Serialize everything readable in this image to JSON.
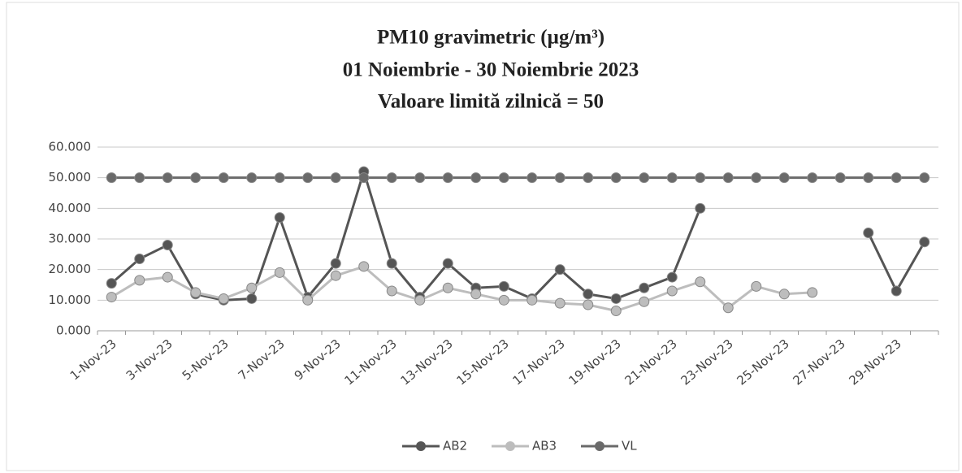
{
  "chart_data": {
    "type": "line",
    "title": "PM10 gravimetric (µg/m³)",
    "subtitle": [
      "01 Noiembrie - 30 Noiembrie 2023",
      "Valoare limită zilnică  = 50"
    ],
    "categories": [
      "1-Nov-23",
      null,
      "3-Nov-23",
      null,
      "5-Nov-23",
      null,
      "7-Nov-23",
      null,
      "9-Nov-23",
      null,
      "11-Nov-23",
      null,
      "13-Nov-23",
      null,
      "15-Nov-23",
      null,
      "17-Nov-23",
      null,
      "19-Nov-23",
      null,
      "21-Nov-23",
      null,
      "23-Nov-23",
      null,
      "25-Nov-23",
      null,
      "27-Nov-23",
      null,
      "29-Nov-23",
      null
    ],
    "series": [
      {
        "name": "AB2",
        "color": "#555555",
        "values": [
          15.5,
          23.5,
          28,
          12,
          10,
          10.5,
          37,
          11,
          22,
          52,
          22,
          11,
          22,
          14,
          14.5,
          10.5,
          20,
          12,
          10.5,
          14,
          17.5,
          40,
          null,
          null,
          null,
          null,
          null,
          32,
          13,
          29
        ]
      },
      {
        "name": "AB3",
        "color": "#bdbdbd",
        "values": [
          11,
          16.5,
          17.5,
          12.5,
          10.5,
          14,
          19,
          10,
          18,
          21,
          13,
          10,
          14,
          12,
          10,
          10,
          9,
          8.5,
          6.5,
          9.5,
          13,
          16,
          7.5,
          14.5,
          12,
          12.5,
          null,
          null,
          null,
          null
        ]
      },
      {
        "name": "VL",
        "color": "#6a6a6a",
        "values": [
          50,
          50,
          50,
          50,
          50,
          50,
          50,
          50,
          50,
          50,
          50,
          50,
          50,
          50,
          50,
          50,
          50,
          50,
          50,
          50,
          50,
          50,
          50,
          50,
          50,
          50,
          50,
          50,
          50,
          50
        ]
      }
    ],
    "ylim": [
      0,
      60
    ],
    "yticks": [
      {
        "value": 0,
        "label": "0.000"
      },
      {
        "value": 10,
        "label": "10.000"
      },
      {
        "value": 20,
        "label": "20.000"
      },
      {
        "value": 30,
        "label": "30.000"
      },
      {
        "value": 40,
        "label": "40.000"
      },
      {
        "value": 50,
        "label": "50.000"
      },
      {
        "value": 60,
        "label": "60.000"
      }
    ],
    "grid": true,
    "legend": "bottom"
  }
}
